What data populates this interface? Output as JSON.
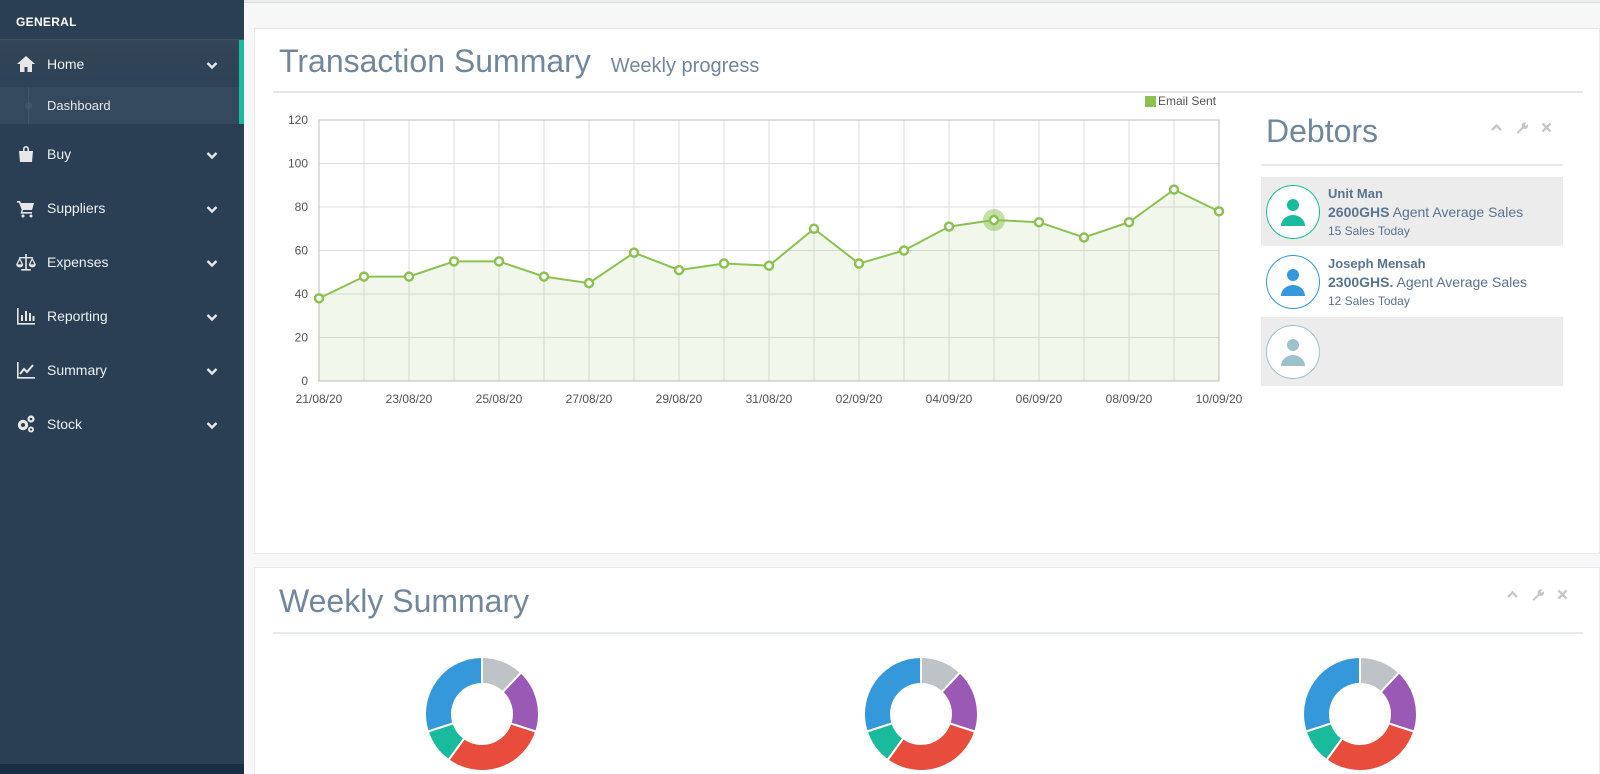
{
  "sidebar": {
    "section_title": "GENERAL",
    "items": [
      {
        "label": "Home",
        "icon": "home-icon"
      },
      {
        "label": "Buy",
        "icon": "shopping-bag-icon"
      },
      {
        "label": "Suppliers",
        "icon": "shopping-cart-icon"
      },
      {
        "label": "Expenses",
        "icon": "balance-scale-icon"
      },
      {
        "label": "Reporting",
        "icon": "bar-chart-icon"
      },
      {
        "label": "Summary",
        "icon": "line-chart-icon"
      },
      {
        "label": "Stock",
        "icon": "gears-icon"
      }
    ],
    "sub_item": "Dashboard"
  },
  "transaction": {
    "title": "Transaction Summary",
    "subtitle": "Weekly progress"
  },
  "debtors": {
    "title": "Debtors",
    "list": [
      {
        "name": "Unit Man",
        "amount": "2600GHS",
        "desc": "Agent Average Sales",
        "sub": "15 Sales Today",
        "color": "#1abb9c"
      },
      {
        "name": "Joseph Mensah",
        "amount": "2300GHS.",
        "desc": "Agent Average Sales",
        "sub": "12 Sales Today",
        "color": "#3498db"
      },
      {
        "name": "",
        "amount": "",
        "desc": "",
        "sub": "",
        "color": "#9cc2cb"
      }
    ]
  },
  "weekly": {
    "title": "Weekly Summary"
  },
  "colors": {
    "accent": "#1abb9c",
    "sidebar_bg": "#2a3f54",
    "line": "#8cc152"
  },
  "chart_data": [
    {
      "type": "line",
      "series": [
        {
          "name": "Email Sent",
          "values": [
            38,
            48,
            48,
            55,
            55,
            48,
            45,
            59,
            51,
            54,
            53,
            70,
            54,
            60,
            71,
            74,
            73,
            66,
            73,
            88,
            78
          ]
        }
      ],
      "x_tick_labels": [
        "21/08/20",
        "23/08/20",
        "25/08/20",
        "27/08/20",
        "29/08/20",
        "31/08/20",
        "02/09/20",
        "04/09/20",
        "06/09/20",
        "08/09/20",
        "10/09/20"
      ],
      "ylim": [
        0,
        120
      ],
      "y_ticks": [
        0,
        20,
        40,
        60,
        80,
        100,
        120
      ],
      "grid": true,
      "legend": "top-right",
      "highlighted_point_index": 15
    },
    {
      "type": "pie",
      "values": [
        30,
        10,
        30,
        18,
        12
      ],
      "colors": [
        "#3498db",
        "#1abb9c",
        "#e74c3c",
        "#9b59b6",
        "#bdc3c7"
      ]
    },
    {
      "type": "pie",
      "values": [
        30,
        10,
        30,
        18,
        12
      ],
      "colors": [
        "#3498db",
        "#1abb9c",
        "#e74c3c",
        "#9b59b6",
        "#bdc3c7"
      ]
    },
    {
      "type": "pie",
      "values": [
        30,
        10,
        30,
        18,
        12
      ],
      "colors": [
        "#3498db",
        "#1abb9c",
        "#e74c3c",
        "#9b59b6",
        "#bdc3c7"
      ]
    }
  ]
}
